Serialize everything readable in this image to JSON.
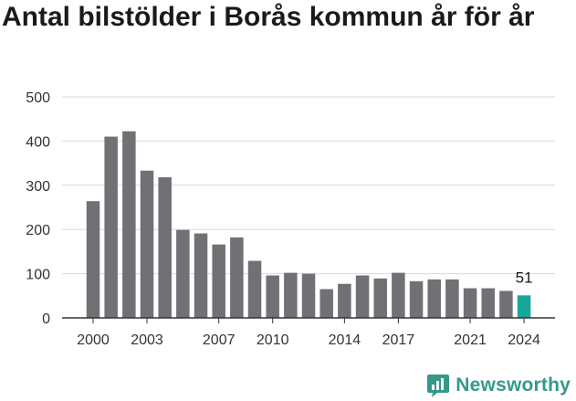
{
  "title": "Antal bilstölder i Borås kommun år för år",
  "brand": {
    "name": "Newsworthy",
    "icon": "newsworthy-logo-icon",
    "color": "#35998a"
  },
  "chart_data": {
    "type": "bar",
    "title": "Antal bilstölder i Borås kommun år för år",
    "xlabel": "",
    "ylabel": "",
    "ylim": [
      0,
      500
    ],
    "yticks": [
      0,
      100,
      200,
      300,
      400,
      500
    ],
    "xtick_labels": [
      "2000",
      "2003",
      "2007",
      "2010",
      "2014",
      "2017",
      "2021",
      "2024"
    ],
    "grid": true,
    "categories": [
      2000,
      2001,
      2002,
      2003,
      2004,
      2005,
      2006,
      2007,
      2008,
      2009,
      2010,
      2011,
      2012,
      2013,
      2014,
      2015,
      2016,
      2017,
      2018,
      2019,
      2020,
      2021,
      2022,
      2023,
      2024
    ],
    "values": [
      264,
      410,
      422,
      333,
      318,
      199,
      191,
      166,
      182,
      129,
      96,
      102,
      100,
      65,
      77,
      96,
      89,
      102,
      83,
      87,
      87,
      67,
      67,
      61,
      51
    ],
    "bar_color": "#717075",
    "highlight_color": "#17a899",
    "highlight_category": 2024,
    "annotation": {
      "category": 2024,
      "label": "51"
    }
  }
}
